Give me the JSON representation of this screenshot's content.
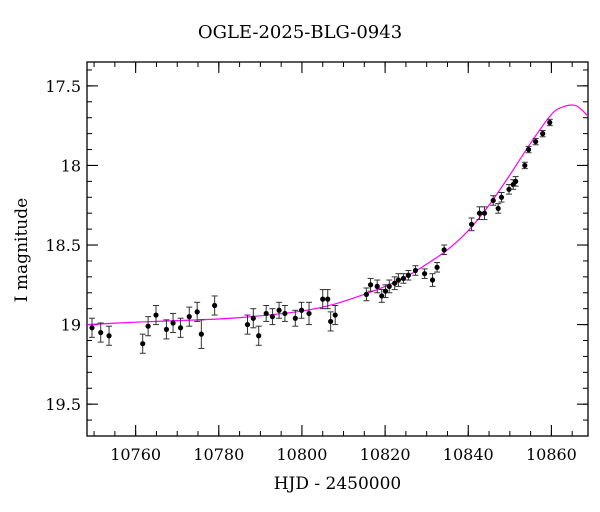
{
  "chart_data": {
    "type": "scatter",
    "title": "OGLE-2025-BLG-0943",
    "xlabel": "HJD - 2450000",
    "ylabel": "I magnitude",
    "xlim": [
      10748.3,
      10868.8
    ],
    "ylim": [
      19.7,
      17.35
    ],
    "y_inverted": true,
    "xticks": [
      10760,
      10780,
      10800,
      10820,
      10840,
      10860
    ],
    "yticks": [
      17.5,
      18,
      18.5,
      19,
      19.5
    ],
    "x_minor_step": 5,
    "y_minor_step": 0.1,
    "grid": false,
    "point_color": "#000000",
    "model_color": "#ff00ff",
    "series": [
      {
        "x": [
          10749.5,
          10751.6,
          10753.6,
          10761.7,
          10763.0,
          10764.9,
          10767.4,
          10769.0,
          10770.8,
          10772.9,
          10774.8,
          10775.8,
          10779.0,
          10786.9,
          10788.3,
          10789.6,
          10791.4,
          10792.9,
          10794.5,
          10795.9,
          10798.4,
          10799.9,
          10801.7,
          10805.0,
          10806.2,
          10806.9,
          10808.0,
          10815.5,
          10816.5,
          10818.1,
          10819.2,
          10820.1,
          10821.0,
          10822.3,
          10823.2,
          10824.4,
          10825.6,
          10827.3,
          10829.5,
          10831.4,
          10832.5,
          10834.2,
          10840.8,
          10842.7,
          10843.9,
          10846.0,
          10847.2,
          10848.0,
          10849.8,
          10850.8,
          10851.4,
          10853.6,
          10854.5,
          10856.2,
          10857.9,
          10859.6
        ],
        "y": [
          19.02,
          19.05,
          19.07,
          19.12,
          19.01,
          18.94,
          19.03,
          18.99,
          19.02,
          18.95,
          18.92,
          19.06,
          18.88,
          19.0,
          18.96,
          19.07,
          18.93,
          18.95,
          18.91,
          18.93,
          18.96,
          18.91,
          18.93,
          18.84,
          18.84,
          18.98,
          18.94,
          18.81,
          18.75,
          18.76,
          18.82,
          18.79,
          18.76,
          18.74,
          18.72,
          18.71,
          18.69,
          18.66,
          18.68,
          18.72,
          18.64,
          18.53,
          18.37,
          18.3,
          18.3,
          18.22,
          18.27,
          18.2,
          18.15,
          18.12,
          18.1,
          18.0,
          17.9,
          17.85,
          17.8,
          17.73
        ],
        "yerr": [
          0.06,
          0.06,
          0.06,
          0.06,
          0.06,
          0.06,
          0.06,
          0.06,
          0.06,
          0.06,
          0.06,
          0.09,
          0.06,
          0.06,
          0.06,
          0.06,
          0.05,
          0.05,
          0.05,
          0.05,
          0.05,
          0.05,
          0.07,
          0.06,
          0.06,
          0.06,
          0.06,
          0.04,
          0.04,
          0.04,
          0.04,
          0.04,
          0.04,
          0.04,
          0.04,
          0.03,
          0.03,
          0.03,
          0.03,
          0.04,
          0.03,
          0.03,
          0.04,
          0.04,
          0.04,
          0.03,
          0.03,
          0.03,
          0.03,
          0.03,
          0.03,
          0.02,
          0.02,
          0.02,
          0.02,
          0.02
        ]
      }
    ],
    "model_curve": {
      "x": [
        10748.3,
        10760,
        10770,
        10780,
        10790,
        10800,
        10808,
        10815,
        10820,
        10825,
        10830,
        10835,
        10840,
        10845,
        10850,
        10855,
        10860,
        10863,
        10866,
        10868.8
      ],
      "y": [
        19.0,
        18.985,
        18.975,
        18.965,
        18.945,
        18.915,
        18.87,
        18.81,
        18.76,
        18.7,
        18.62,
        18.53,
        18.41,
        18.25,
        18.06,
        17.86,
        17.68,
        17.63,
        17.625,
        17.69
      ]
    }
  }
}
